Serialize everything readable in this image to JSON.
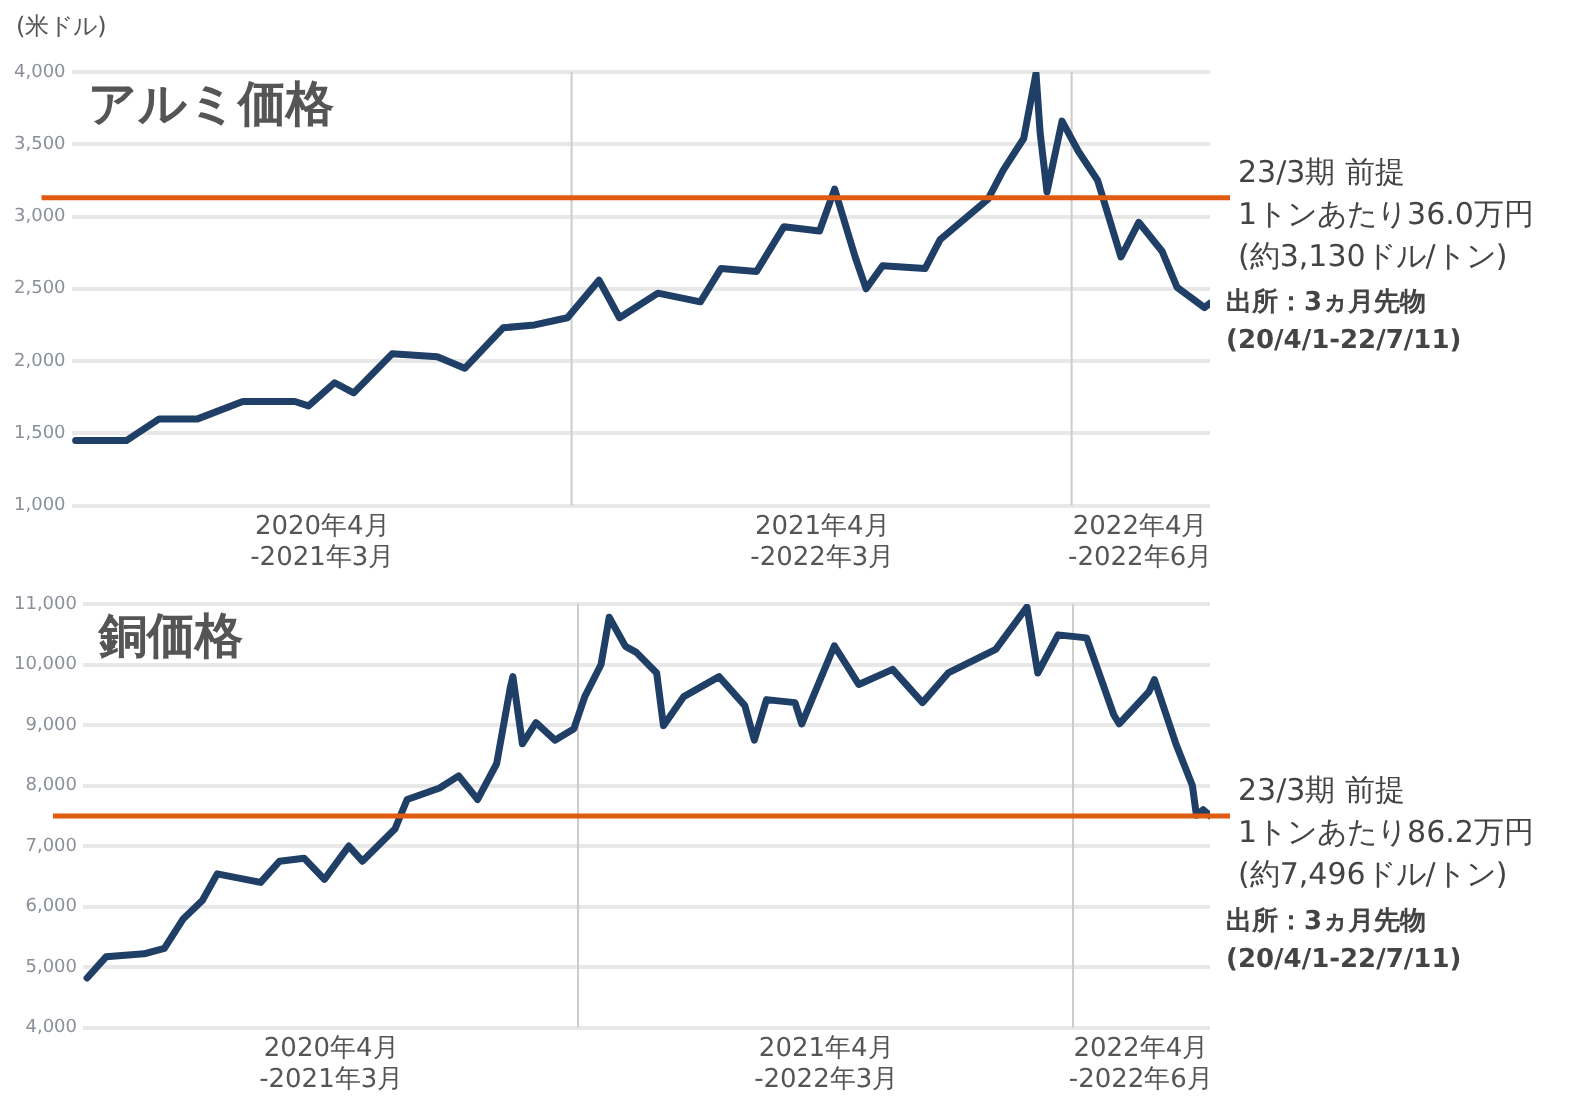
{
  "chart_data": [
    {
      "type": "line",
      "title": "アルミ価格",
      "ylabel": "(米ドル)",
      "grid": "y",
      "xlim": [
        "2020-04-01",
        "2022-07-11"
      ],
      "xticks": [
        {
          "value": "2020-10-01",
          "label": "2020年4月\n-2021年3月"
        },
        {
          "value": "2021-10-01",
          "label": "2021年4月\n-2022年3月"
        },
        {
          "value": "2022-05-21",
          "label": "2022年4月\n-2022年6月"
        }
      ],
      "ylim": [
        1000,
        4000
      ],
      "yticks": [
        {
          "value": 1000,
          "label": "1,000"
        },
        {
          "value": 1500,
          "label": "1,500"
        },
        {
          "value": 2000,
          "label": "2,000"
        },
        {
          "value": 2500,
          "label": "2,500"
        },
        {
          "value": 3000,
          "label": "3,000"
        },
        {
          "value": 3500,
          "label": "3,500"
        },
        {
          "value": 4000,
          "label": "4,000"
        }
      ],
      "series": [
        {
          "color": "#1f3f66",
          "x": [
            "2020-04-04",
            "2020-05-11",
            "2020-06-04",
            "2020-07-02",
            "2020-08-04",
            "2020-09-11",
            "2020-09-21",
            "2020-10-10",
            "2020-10-24",
            "2020-11-21",
            "2020-12-24",
            "2021-01-13",
            "2021-02-10",
            "2021-03-05",
            "2021-03-29",
            "2021-04-21",
            "2021-05-06",
            "2021-06-03",
            "2021-07-04",
            "2021-07-19",
            "2021-08-14",
            "2021-09-03",
            "2021-09-29",
            "2021-10-10",
            "2021-10-25",
            "2021-11-02",
            "2021-11-14",
            "2021-12-15",
            "2021-12-26",
            "2022-01-30",
            "2022-02-10",
            "2022-02-25",
            "2022-03-06",
            "2022-03-09",
            "2022-03-14",
            "2022-03-25",
            "2022-04-06",
            "2022-04-20",
            "2022-05-07",
            "2022-05-20",
            "2022-06-06",
            "2022-06-17",
            "2022-07-07",
            "2022-07-11"
          ],
          "values": [
            1450,
            1450,
            1600,
            1600,
            1720,
            1720,
            1690,
            1850,
            1780,
            2050,
            2030,
            1950,
            2230,
            2250,
            2300,
            2560,
            2300,
            2470,
            2410,
            2640,
            2620,
            2930,
            2900,
            3190,
            2720,
            2500,
            2660,
            2640,
            2840,
            3120,
            3320,
            3540,
            3990,
            3580,
            3170,
            3660,
            3450,
            3250,
            2720,
            2960,
            2760,
            2510,
            2370,
            2400
          ]
        }
      ],
      "ref_lines": [
        {
          "axis": "y",
          "value": 3130,
          "label": "23/3期 前提\n1トンあたり36.0万円\n(約3,130ドル/トン)",
          "color": "#e05a10"
        },
        {
          "axis": "x",
          "value": "2021-04-01",
          "color": "#cccccc"
        },
        {
          "axis": "x",
          "value": "2022-04-01",
          "color": "#cccccc"
        }
      ],
      "annotations": [
        "出所：3ヵ月先物\n(20/4/1-22/7/11)"
      ]
    },
    {
      "type": "line",
      "title": "銅価格",
      "grid": "y",
      "xlim": [
        "2020-04-01",
        "2022-07-11"
      ],
      "xticks": [
        {
          "value": "2020-10-01",
          "label": "2020年4月\n-2021年3月"
        },
        {
          "value": "2021-10-01",
          "label": "2021年4月\n-2022年3月"
        },
        {
          "value": "2022-05-21",
          "label": "2022年4月\n-2022年6月"
        }
      ],
      "ylim": [
        4000,
        11000
      ],
      "yticks": [
        {
          "value": 4000,
          "label": "4,000"
        },
        {
          "value": 5000,
          "label": "5,000"
        },
        {
          "value": 6000,
          "label": "6,000"
        },
        {
          "value": 7000,
          "label": "7,000"
        },
        {
          "value": 8000,
          "label": "8,000"
        },
        {
          "value": 9000,
          "label": "9,000"
        },
        {
          "value": 10000,
          "label": "10,000"
        },
        {
          "value": 11000,
          "label": "11,000"
        }
      ],
      "series": [
        {
          "color": "#1f3f66",
          "x": [
            "2020-04-04",
            "2020-04-18",
            "2020-05-16",
            "2020-05-31",
            "2020-06-14",
            "2020-06-28",
            "2020-07-09",
            "2020-08-10",
            "2020-08-24",
            "2020-09-11",
            "2020-09-26",
            "2020-10-14",
            "2020-10-24",
            "2020-11-17",
            "2020-11-26",
            "2020-12-20",
            "2021-01-03",
            "2021-01-17",
            "2021-01-31",
            "2021-02-10",
            "2021-02-12",
            "2021-02-19",
            "2021-03-01",
            "2021-03-15",
            "2021-03-29",
            "2021-04-06",
            "2021-04-18",
            "2021-04-24",
            "2021-05-06",
            "2021-05-14",
            "2021-05-29",
            "2021-06-03",
            "2021-06-18",
            "2021-07-14",
            "2021-08-02",
            "2021-08-09",
            "2021-08-18",
            "2021-09-08",
            "2021-09-13",
            "2021-10-07",
            "2021-10-25",
            "2021-11-19",
            "2021-12-11",
            "2021-12-30",
            "2022-02-03",
            "2022-02-26",
            "2022-03-06",
            "2022-03-21",
            "2022-04-11",
            "2022-05-01",
            "2022-05-05",
            "2022-05-27",
            "2022-05-31",
            "2022-06-16",
            "2022-06-28",
            "2022-07-01",
            "2022-07-06",
            "2022-07-11"
          ],
          "values": [
            4820,
            5170,
            5220,
            5310,
            5800,
            6100,
            6540,
            6400,
            6750,
            6800,
            6450,
            7000,
            6750,
            7280,
            7770,
            7960,
            8160,
            7770,
            8360,
            9610,
            9800,
            8690,
            9040,
            8750,
            8940,
            9470,
            10000,
            10780,
            10300,
            10200,
            9860,
            8990,
            9470,
            9800,
            9320,
            8750,
            9420,
            9370,
            9020,
            10310,
            9670,
            9920,
            9370,
            9860,
            10250,
            10950,
            9860,
            10490,
            10440,
            9170,
            9020,
            9550,
            9750,
            8680,
            8000,
            7510,
            7600,
            7500
          ]
        }
      ],
      "ref_lines": [
        {
          "axis": "y",
          "value": 7496,
          "label": "23/3期 前提\n1トンあたり86.2万円\n(約7,496ドル/トン)",
          "color": "#e05a10"
        },
        {
          "axis": "x",
          "value": "2021-04-01",
          "color": "#cccccc"
        },
        {
          "axis": "x",
          "value": "2022-04-01",
          "color": "#cccccc"
        }
      ],
      "annotations": [
        "出所：3ヵ月先物\n(20/4/1-22/7/11)"
      ]
    }
  ]
}
